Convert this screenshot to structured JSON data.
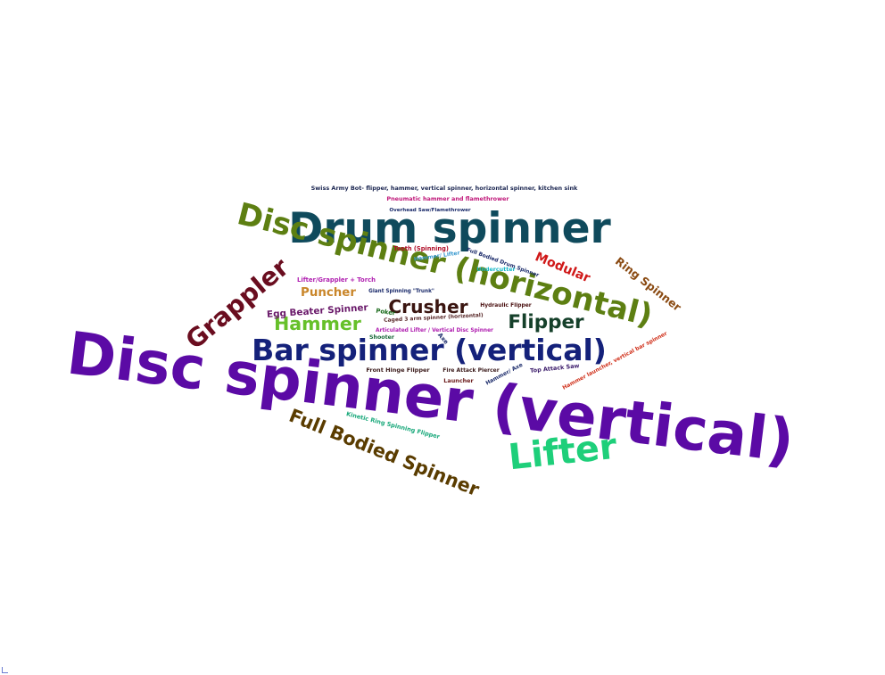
{
  "title": "",
  "words": [
    {
      "text": "Disc spinner (vertical)",
      "color": "#5b0aa5"
    },
    {
      "text": "Drum spinner",
      "color": "#0f4a5c"
    },
    {
      "text": "Disc spinner (horizontal)",
      "color": "#5d7f12"
    },
    {
      "text": "Bar spinner (vertical)",
      "color": "#14217a"
    },
    {
      "text": "Lifter",
      "color": "#1ecf7a"
    },
    {
      "text": "Grappler",
      "color": "#6a0d1f"
    },
    {
      "text": "Full Bodied Spinner",
      "color": "#5a3c00"
    },
    {
      "text": "Hammer",
      "color": "#66c02a"
    },
    {
      "text": "Crusher",
      "color": "#3a1510"
    },
    {
      "text": "Flipper",
      "color": "#15402a"
    },
    {
      "text": "Egg Beater Spinner",
      "color": "#6a1a6a"
    },
    {
      "text": "Puncher",
      "color": "#c9862a"
    },
    {
      "text": "Modular",
      "color": "#d01818"
    },
    {
      "text": "Ring Spinner",
      "color": "#8a4a12"
    },
    {
      "text": "Swiss Army Bot- flipper, hammer, vertical spinner, horizontal spinner, kitchen sink",
      "color": "#1a2550"
    },
    {
      "text": "Pneumatic hammer and flamethrower",
      "color": "#c0187a"
    },
    {
      "text": "Overhead Saw/Flamethrower",
      "color": "#1a2a6a"
    },
    {
      "text": "Teeth (Spinning)",
      "color": "#b0102a"
    },
    {
      "text": "Hammer/ Lifter",
      "color": "#3a9ad0"
    },
    {
      "text": "Full Bodied Drum Spinner",
      "color": "#1a2a6a"
    },
    {
      "text": "Undercutter",
      "color": "#18b8c8"
    },
    {
      "text": "Lifter/Grappler + Torch",
      "color": "#b020b0"
    },
    {
      "text": "Giant Spinning \"Trunk\"",
      "color": "#1a2a6a"
    },
    {
      "text": "Hydraulic Flipper",
      "color": "#4a1010"
    },
    {
      "text": "Poker",
      "color": "#1a6a1a"
    },
    {
      "text": "Caged 3 arm spinner (horizontal)",
      "color": "#5a2a2a"
    },
    {
      "text": "Articulated Lifter / Vertical Disc Spinner",
      "color": "#b020b0"
    },
    {
      "text": "Shooter",
      "color": "#1a6a3a"
    },
    {
      "text": "Axe",
      "color": "#1a2a6a"
    },
    {
      "text": "Front Hinge Flipper",
      "color": "#3a1a1a"
    },
    {
      "text": "Fire Attack Piercer",
      "color": "#3a1a1a"
    },
    {
      "text": "Launcher",
      "color": "#6a1a1a"
    },
    {
      "text": "Hammer/ Axe",
      "color": "#1a2a6a"
    },
    {
      "text": "Top Attack Saw",
      "color": "#3a1a6a"
    },
    {
      "text": "Hammer launcher, vertical bar spinner",
      "color": "#d0301a"
    },
    {
      "text": "Kinetic Ring Spinning Flipper",
      "color": "#18a87a"
    }
  ]
}
